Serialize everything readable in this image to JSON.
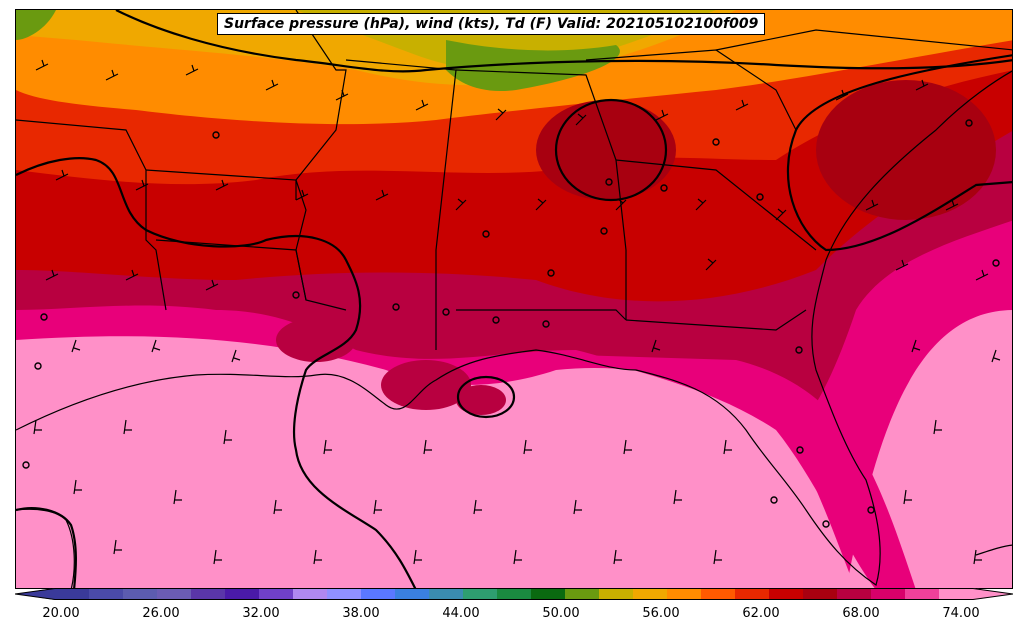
{
  "title": "Surface pressure (hPa), wind (kts), Td (F) Valid: 202105102100f009",
  "colorbar": {
    "ticks": [
      "20.00",
      "26.00",
      "32.00",
      "38.00",
      "44.00",
      "50.00",
      "56.00",
      "62.00",
      "68.00",
      "74.00"
    ],
    "colors": [
      "#3a3a9a",
      "#4a4aa8",
      "#5c5cb0",
      "#6b5cb4",
      "#5a36a8",
      "#4a1aa8",
      "#7040c8",
      "#b088f0",
      "#9090ff",
      "#5a78ff",
      "#3a80e0",
      "#3a8cb0",
      "#2e9e70",
      "#1a8a40",
      "#0a6a10",
      "#6a9a10",
      "#c8b000",
      "#f0a800",
      "#ff8c00",
      "#ff5a00",
      "#e82800",
      "#c80000",
      "#a80010",
      "#b80040",
      "#d8006a",
      "#f0409a",
      "#ff90c8"
    ]
  },
  "map": {
    "region": "Southeastern United States and Gulf of Mexico",
    "layers": [
      "dewpoint-fill",
      "state-borders",
      "coastlines",
      "isobars",
      "wind-barbs"
    ]
  }
}
